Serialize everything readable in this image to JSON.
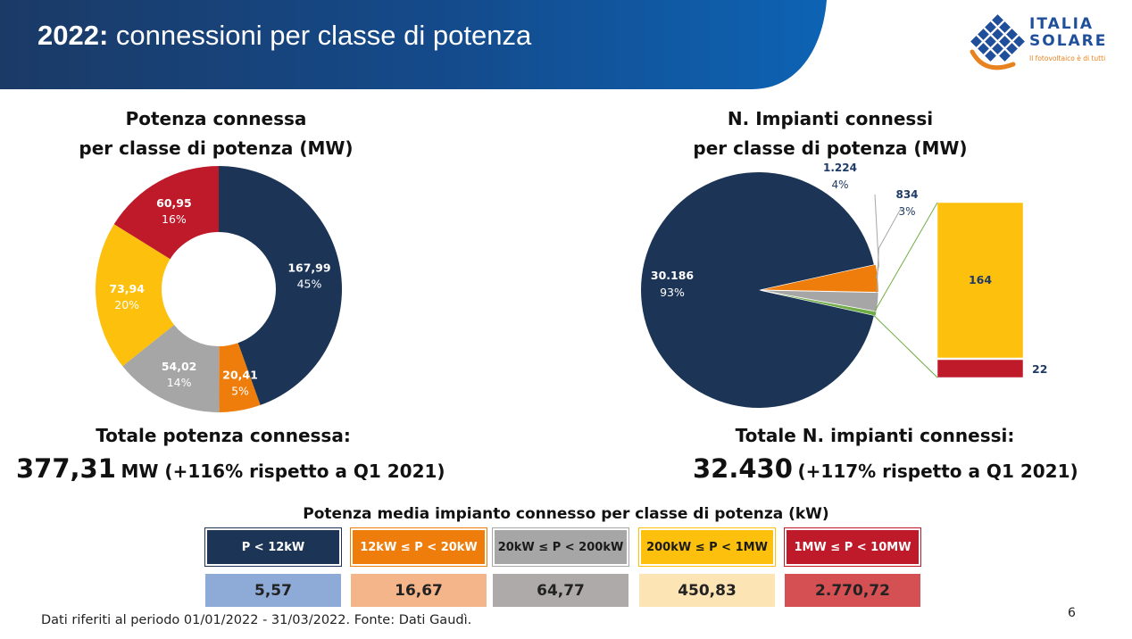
{
  "header": {
    "title_year": "2022:",
    "title_text": "connessioni per classe di potenza"
  },
  "logo": {
    "name_line1": "ITALIA",
    "name_line2": "SOLARE",
    "tagline": "Il fotovoltaico è di tutti"
  },
  "colors": {
    "navy": "#1c3557",
    "orange": "#ef7d0b",
    "grey": "#a6a6a6",
    "yellow": "#fdc00c",
    "red": "#be1a2a",
    "green_connector": "#70ad47",
    "header_navy": "#1b3a66",
    "header_blue": "#0d63b4"
  },
  "chart_data": [
    {
      "type": "pie",
      "variant": "donut",
      "title": "Potenza connessa per classe di potenza (MW)",
      "title_line1": "Potenza connessa",
      "title_line2": "per classe di potenza (MW)",
      "slices": [
        {
          "label": "P < 12kW",
          "value": 167.99,
          "value_label": "167,99",
          "pct_label": "45%",
          "color": "#1c3557"
        },
        {
          "label": "12kW ≤ P < 20kW",
          "value": 20.41,
          "value_label": "20,41",
          "pct_label": "5%",
          "color": "#ef7d0b"
        },
        {
          "label": "20kW ≤ P < 200kW",
          "value": 54.02,
          "value_label": "54,02",
          "pct_label": "14%",
          "color": "#a6a6a6"
        },
        {
          "label": "200kW ≤ P < 1MW",
          "value": 73.94,
          "value_label": "73,94",
          "pct_label": "20%",
          "color": "#fdc00c"
        },
        {
          "label": "1MW ≤ P < 10MW",
          "value": 60.95,
          "value_label": "60,95",
          "pct_label": "16%",
          "color": "#be1a2a"
        }
      ]
    },
    {
      "type": "pie",
      "variant": "pie-of-bar",
      "title": "N. Impianti connessi per classe di potenza (MW)",
      "title_line1": "N. Impianti connessi",
      "title_line2": "per classe di potenza (MW)",
      "slices": [
        {
          "label": "P < 12kW",
          "value": 30186,
          "value_label": "30.186",
          "pct_label": "93%",
          "color": "#1c3557"
        },
        {
          "label": "12kW ≤ P < 20kW",
          "value": 1224,
          "value_label": "1.224",
          "pct_label": "4%",
          "color": "#ef7d0b"
        },
        {
          "label": "20kW ≤ P < 200kW",
          "value": 834,
          "value_label": "834",
          "pct_label": "3%",
          "color": "#a6a6a6"
        },
        {
          "label": "200kW ≤ P < 10MW (combined)",
          "value": 186,
          "value_label": "",
          "pct_label": "",
          "color": "#70ad47"
        }
      ],
      "bar_breakdown": [
        {
          "label": "200kW ≤ P < 1MW",
          "value": 164,
          "value_label": "164",
          "color": "#fdc00c"
        },
        {
          "label": "1MW ≤ P < 10MW",
          "value": 22,
          "value_label": "22",
          "color": "#be1a2a"
        }
      ]
    },
    {
      "type": "table",
      "title": "Potenza media impianto connesso per classe di potenza (kW)",
      "columns": [
        {
          "label": "P < 12kW",
          "value": "5,57",
          "head_bg": "#1c3557",
          "head_fg": "#ffffff",
          "val_bg": "#8eaad6"
        },
        {
          "label": "12kW ≤ P < 20kW",
          "value": "16,67",
          "head_bg": "#ef7d0b",
          "head_fg": "#ffffff",
          "val_bg": "#f5b58a"
        },
        {
          "label": "20kW ≤ P < 200kW",
          "value": "64,77",
          "head_bg": "#a6a6a6",
          "head_fg": "#1a1a1a",
          "val_bg": "#aeaaaa"
        },
        {
          "label": "200kW ≤ P < 1MW",
          "value": "450,83",
          "head_bg": "#fdc00c",
          "head_fg": "#1a1a1a",
          "val_bg": "#fde4b5"
        },
        {
          "label": "1MW ≤ P < 10MW",
          "value": "2.770,72",
          "head_bg": "#be1a2a",
          "head_fg": "#ffffff",
          "val_bg": "#d45052"
        }
      ]
    }
  ],
  "totals": {
    "power_label": "Totale potenza connessa:",
    "power_value": "377,31",
    "power_suffix": "MW (+116% rispetto a Q1 2021)",
    "plants_label": "Totale N. impianti connessi:",
    "plants_value": "32.430",
    "plants_suffix": "(+117% rispetto a Q1 2021)"
  },
  "footer": {
    "note": "Dati riferiti al periodo 01/01/2022 - 31/03/2022. Fonte: Dati Gaudì.",
    "page_number": "6"
  }
}
